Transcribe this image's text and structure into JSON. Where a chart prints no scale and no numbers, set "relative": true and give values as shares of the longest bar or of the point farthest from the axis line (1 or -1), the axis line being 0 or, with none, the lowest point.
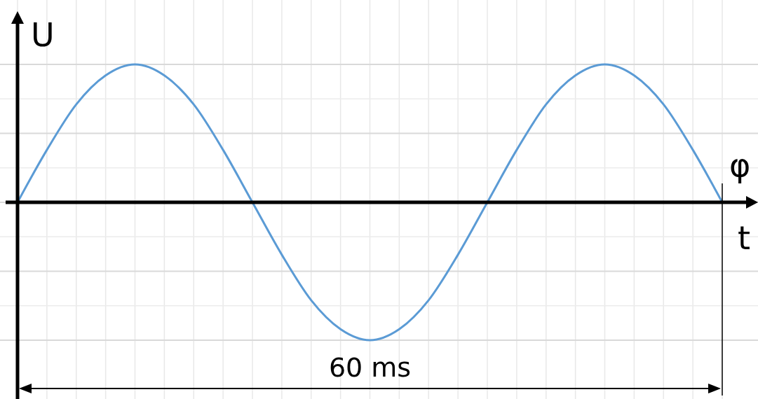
{
  "chart_data": {
    "type": "line",
    "relative": true,
    "ylabel": "U",
    "xlabel": "t",
    "annotations": [
      "60 ms",
      "φ"
    ],
    "grid": true,
    "marker": "none",
    "line_style": "solid",
    "categories": [
      null,
      null,
      null,
      null,
      null,
      null,
      null,
      null,
      null,
      null,
      null,
      null,
      null,
      null,
      null,
      null,
      null,
      null,
      null,
      null,
      null,
      null,
      null,
      null,
      null
    ],
    "series": [
      {
        "color": "#5b9bd5",
        "values": [
          0,
          0.38,
          0.71,
          0.92,
          1,
          0.92,
          0.71,
          0.38,
          0,
          -0.38,
          -0.71,
          -0.92,
          -1,
          -0.92,
          -0.71,
          -0.38,
          0,
          0.38,
          0.71,
          0.92,
          1,
          0.92,
          0.71,
          0.38,
          0
        ]
      }
    ]
  }
}
